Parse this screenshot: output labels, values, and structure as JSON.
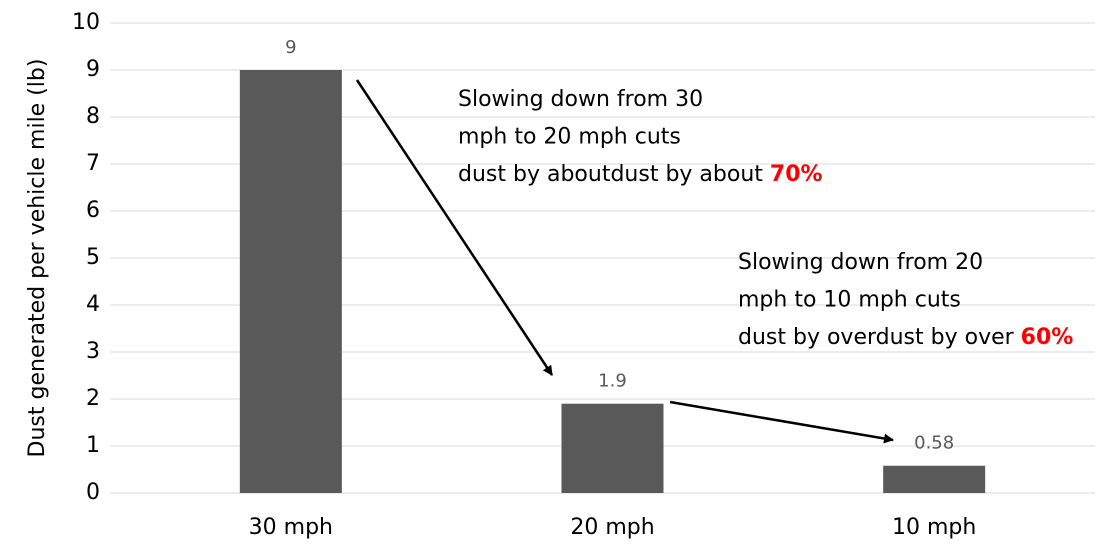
{
  "chart_data": {
    "type": "bar",
    "y_axis_label": "Dust generated per vehicle mile (lb)",
    "categories": [
      "30 mph",
      "20 mph",
      "10 mph"
    ],
    "values": [
      9,
      1.9,
      0.58
    ],
    "color": "#595959",
    "ylim": [
      0,
      10
    ],
    "yticks": [
      0,
      1,
      2,
      3,
      4,
      5,
      6,
      7,
      8,
      9,
      10
    ],
    "grid": true,
    "annotations": [
      {
        "lines": [
          "Slowing down from 30",
          "mph to 20 mph cuts",
          "dust by about"
        ],
        "highlight": "70%"
      },
      {
        "lines": [
          "Slowing down from 20",
          "mph to 10 mph cuts",
          "dust by over"
        ],
        "highlight": "60%"
      }
    ],
    "highlight_color": "#ff0000"
  }
}
